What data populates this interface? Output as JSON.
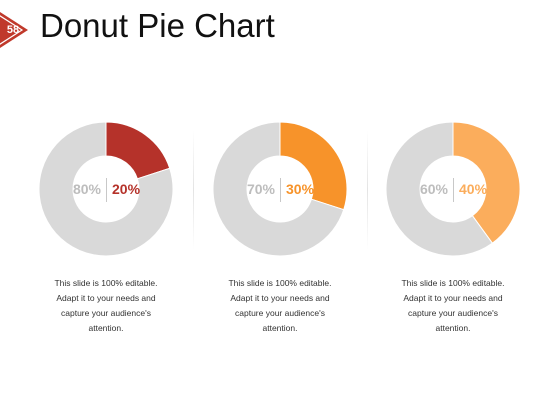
{
  "slide": {
    "number": "58",
    "title": "Donut Pie Chart",
    "badge_color": "#c0392b"
  },
  "chart_data": [
    {
      "type": "pie",
      "donut": true,
      "slices": [
        {
          "label": "20%",
          "value": 20,
          "color": "#b5322a"
        },
        {
          "label": "80%",
          "value": 80,
          "color": "#d9d9d9"
        }
      ],
      "description": [
        "This slide is 100% editable.",
        "Adapt it to your needs and",
        "capture your audience's",
        "attention."
      ]
    },
    {
      "type": "pie",
      "donut": true,
      "slices": [
        {
          "label": "30%",
          "value": 30,
          "color": "#f7932a"
        },
        {
          "label": "70%",
          "value": 70,
          "color": "#d9d9d9"
        }
      ],
      "description": [
        "This slide is 100% editable.",
        "Adapt it to your needs and",
        "capture your audience's",
        "attention."
      ]
    },
    {
      "type": "pie",
      "donut": true,
      "slices": [
        {
          "label": "40%",
          "value": 40,
          "color": "#fbad5c"
        },
        {
          "label": "60%",
          "value": 60,
          "color": "#d9d9d9"
        }
      ],
      "description": [
        "This slide is 100% editable.",
        "Adapt it to your needs and",
        "capture your audience's",
        "attention."
      ]
    }
  ],
  "label_colors": [
    "#b5322a",
    "#f7932a",
    "#fbad5c"
  ]
}
